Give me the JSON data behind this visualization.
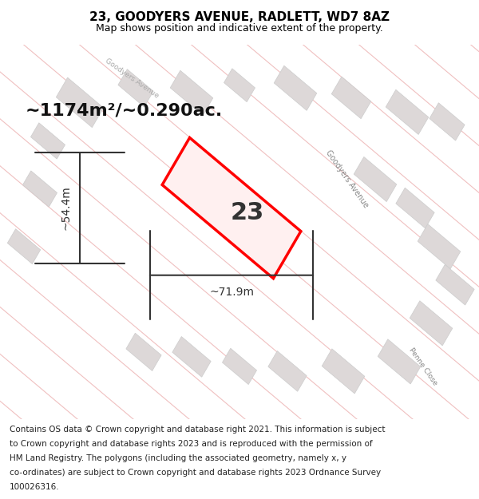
{
  "title": "23, GOODYERS AVENUE, RADLETT, WD7 8AZ",
  "subtitle": "Map shows position and indicative extent of the property.",
  "area_text": "~1174m²/~0.290ac.",
  "width_label": "~71.9m",
  "height_label": "~54.4m",
  "number_label": "23",
  "footer_text": "Contains OS data © Crown copyright and database right 2021. This information is subject to Crown copyright and database rights 2023 and is reproduced with the permission of HM Land Registry. The polygons (including the associated geometry, namely x, y co-ordinates) are subject to Crown copyright and database rights 2023 Ordnance Survey 100026316.",
  "background_color": "#f5f0f0",
  "map_background": "#f9f6f6",
  "plot_color": "#ff0000",
  "grid_line_color": "#f0c0c0",
  "building_color": "#e8e0e0",
  "title_fontsize": 11,
  "subtitle_fontsize": 9,
  "area_fontsize": 16,
  "label_fontsize": 10,
  "number_fontsize": 22,
  "footer_fontsize": 7.5
}
